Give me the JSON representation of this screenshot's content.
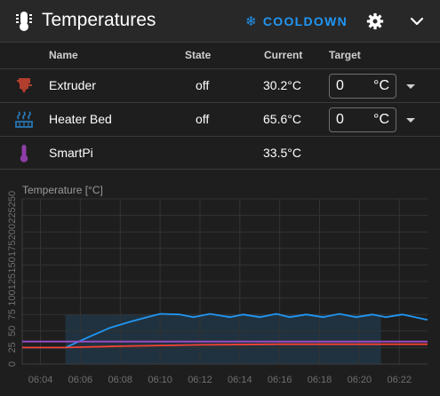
{
  "header": {
    "title": "Temperatures",
    "cooldown_label": "COOLDOWN",
    "icon": "thermometer-lines-icon",
    "cooldown_icon": "snowflake-icon",
    "settings_icon": "gear-icon",
    "collapse_icon": "chevron-down-icon"
  },
  "table": {
    "columns": {
      "name": "Name",
      "state": "State",
      "current": "Current",
      "target": "Target"
    },
    "rows": [
      {
        "name": "Extruder",
        "state": "off",
        "current": "30.2°C",
        "target_value": "0",
        "target_unit": "°C",
        "icon": "extruder-icon",
        "color": "#b23e2e"
      },
      {
        "name": "Heater Bed",
        "state": "off",
        "current": "65.6°C",
        "target_value": "0",
        "target_unit": "°C",
        "icon": "heater-bed-icon",
        "color": "#2a79b8"
      },
      {
        "name": "SmartPi",
        "state": "",
        "current": "33.5°C",
        "target_value": "",
        "target_unit": "",
        "icon": "thermometer-icon",
        "color": "#8e3ea8"
      }
    ]
  },
  "chart_data": {
    "type": "line",
    "title": "Temperature [°C]",
    "ylim": [
      0,
      250
    ],
    "yticks": [
      "0",
      "25",
      "50",
      "75",
      "100",
      "125",
      "150",
      "175",
      "200",
      "225",
      "250"
    ],
    "xticks": [
      "06:04",
      "06:06",
      "06:08",
      "06:10",
      "06:12",
      "06:14",
      "06:16",
      "06:18",
      "06:20",
      "06:22"
    ],
    "xlim": [
      "06:03:05",
      "06:23:25"
    ],
    "grid": true,
    "band": {
      "x0": "06:05:15",
      "x1": "06:21:05",
      "y0": 0,
      "y1": 75,
      "color": "#2a79b8"
    },
    "series": [
      {
        "color": "#2196f3",
        "x": [
          "06:03:05",
          "06:05:15",
          "06:06:30",
          "06:07:30",
          "06:08:30",
          "06:09:30",
          "06:10:00",
          "06:11:00",
          "06:11:40",
          "06:12:30",
          "06:13:30",
          "06:14:10",
          "06:15:00",
          "06:15:50",
          "06:16:30",
          "06:17:20",
          "06:18:10",
          "06:19:00",
          "06:19:50",
          "06:20:40",
          "06:21:20",
          "06:22:10",
          "06:23:25"
        ],
        "values": [
          25,
          25,
          42,
          55,
          64,
          72,
          76,
          75,
          71,
          76,
          71,
          75,
          71,
          76,
          71,
          75,
          71,
          76,
          71,
          75,
          71,
          75,
          67
        ]
      },
      {
        "color": "#9c4dcc",
        "x": [
          "06:03:05",
          "06:12:00",
          "06:23:25"
        ],
        "values": [
          34,
          34,
          34
        ]
      },
      {
        "color": "#f44336",
        "x": [
          "06:03:05",
          "06:05:15",
          "06:08:00",
          "06:12:00",
          "06:16:00",
          "06:23:25"
        ],
        "values": [
          25,
          25,
          27,
          29,
          30,
          30
        ]
      }
    ]
  }
}
